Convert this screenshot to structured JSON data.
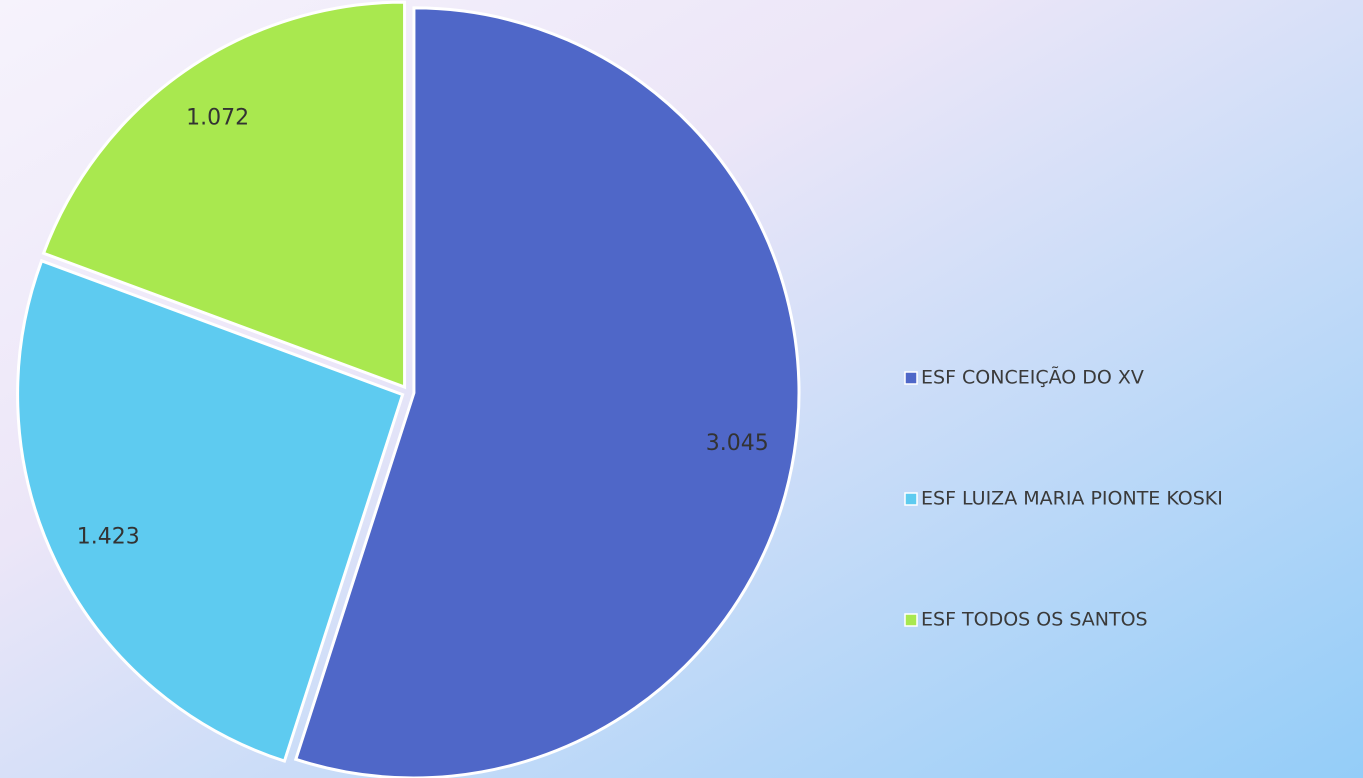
{
  "chart_data": {
    "type": "pie",
    "categories": [
      "ESF CONCEIÇÃO DO XV",
      "ESF LUIZA MARIA PIONTE KOSKI",
      "ESF TODOS OS SANTOS"
    ],
    "values": [
      3045,
      1423,
      1072
    ],
    "value_labels": [
      "3.045",
      "1.423",
      "1.072"
    ],
    "colors": [
      "#4f67c8",
      "#5ecbf0",
      "#a9e84f"
    ],
    "legend": "right"
  }
}
